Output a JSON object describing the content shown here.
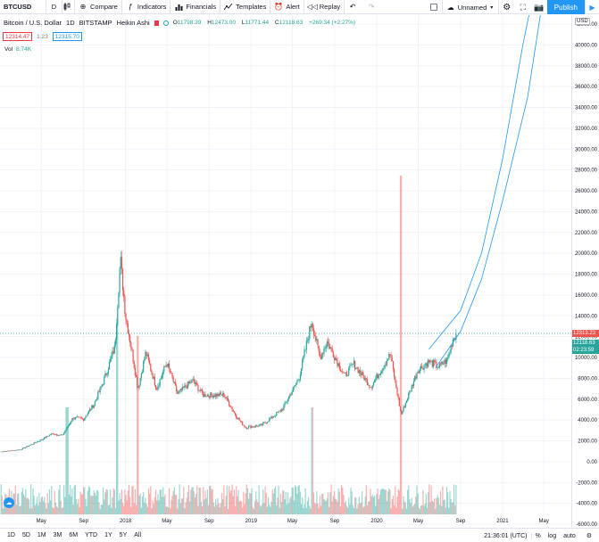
{
  "toolbar": {
    "symbol": "BTCUSD",
    "interval": "D",
    "compare": "Compare",
    "indicators": "Indicators",
    "financials": "Financials",
    "templates": "Templates",
    "alert": "Alert",
    "replay": "Replay",
    "layout_name": "Unnamed",
    "publish": "Publish"
  },
  "legend": {
    "name": "Bitcoin / U.S. Dollar",
    "interval": "1D",
    "exchange": "BITSTAMP",
    "style": "Heikin Ashi",
    "open_label": "O",
    "open": "11798.39",
    "high_label": "H",
    "high": "12473.00",
    "low_label": "L",
    "low": "11771.44",
    "close_label": "C",
    "close": "12118.63",
    "change": "+269.34 (+2.27%)",
    "bid": "12314.47",
    "spread": "1.23",
    "ask": "12315.70",
    "volume_label": "Vol",
    "volume": "8.74K"
  },
  "chart_data": {
    "type": "candlestick",
    "currency": "USD",
    "price_ticks": [
      "42000.00",
      "40000.00",
      "38000.00",
      "36000.00",
      "34000.00",
      "32000.00",
      "30000.00",
      "28000.00",
      "26000.00",
      "24000.00",
      "22000.00",
      "20000.00",
      "18000.00",
      "16000.00",
      "14000.00",
      "12000.00",
      "10000.00",
      "8000.00",
      "6000.00",
      "4000.00",
      "2000.00",
      "0.00",
      "-2000.00",
      "-4000.00",
      "-6000.00"
    ],
    "price_tick_values": [
      42000,
      40000,
      38000,
      36000,
      34000,
      32000,
      30000,
      28000,
      26000,
      24000,
      22000,
      20000,
      18000,
      16000,
      14000,
      12000,
      10000,
      8000,
      6000,
      4000,
      2000,
      0,
      -2000,
      -4000,
      -6000
    ],
    "time_ticks": [
      "May",
      "Sep",
      "2018",
      "May",
      "Sep",
      "2019",
      "May",
      "Sep",
      "2020",
      "May",
      "Sep",
      "2021",
      "May"
    ],
    "time_tick_dates": [
      "2017-05",
      "2017-09",
      "2018-01",
      "2018-05",
      "2018-09",
      "2019-01",
      "2019-05",
      "2019-09",
      "2020-01",
      "2020-05",
      "2020-09",
      "2021-01",
      "2021-05"
    ],
    "last_price": "12313.23",
    "last_close": "12118.63",
    "countdown": "02:23:59",
    "up_color": "#26a69a",
    "down_color": "#ef5350",
    "price_path": [
      [
        "2017-01",
        950
      ],
      [
        "2017-03",
        1150
      ],
      [
        "2017-05",
        2100
      ],
      [
        "2017-06",
        2700
      ],
      [
        "2017-07",
        2500
      ],
      [
        "2017-08",
        4200
      ],
      [
        "2017-09",
        4100
      ],
      [
        "2017-10",
        5500
      ],
      [
        "2017-11",
        8000
      ],
      [
        "2017-12-01",
        11000
      ],
      [
        "2017-12-17",
        19500
      ],
      [
        "2018-01-01",
        14000
      ],
      [
        "2018-01-15",
        11500
      ],
      [
        "2018-02-06",
        7000
      ],
      [
        "2018-03-01",
        10500
      ],
      [
        "2018-04-01",
        7000
      ],
      [
        "2018-05-01",
        9500
      ],
      [
        "2018-06-01",
        6500
      ],
      [
        "2018-07-15",
        7800
      ],
      [
        "2018-08-15",
        6400
      ],
      [
        "2018-10-15",
        6400
      ],
      [
        "2018-11-20",
        4300
      ],
      [
        "2018-12-15",
        3300
      ],
      [
        "2019-02-01",
        3500
      ],
      [
        "2019-04-01",
        5000
      ],
      [
        "2019-05-20",
        8000
      ],
      [
        "2019-06-26",
        13500
      ],
      [
        "2019-07-20",
        10000
      ],
      [
        "2019-08-10",
        11500
      ],
      [
        "2019-09-30",
        8200
      ],
      [
        "2019-10-26",
        9400
      ],
      [
        "2019-12-15",
        7200
      ],
      [
        "2020-02-10",
        10300
      ],
      [
        "2020-03-12",
        4500
      ],
      [
        "2020-04-30",
        8800
      ],
      [
        "2020-06-01",
        9600
      ],
      [
        "2020-07-01",
        9100
      ],
      [
        "2020-07-25",
        9800
      ],
      [
        "2020-08-10",
        11800
      ],
      [
        "2020-08-20",
        12300
      ]
    ],
    "channel_upper": [
      [
        "2020-06-01",
        10800
      ],
      [
        "2020-09-01",
        14500
      ],
      [
        "2020-11-01",
        20000
      ],
      [
        "2021-01-01",
        29000
      ],
      [
        "2021-03-01",
        40000
      ],
      [
        "2021-04-01",
        45000
      ]
    ],
    "channel_lower": [
      [
        "2020-06-20",
        9000
      ],
      [
        "2020-09-01",
        12500
      ],
      [
        "2020-11-01",
        17500
      ],
      [
        "2021-01-01",
        25000
      ],
      [
        "2021-03-15",
        35000
      ],
      [
        "2021-05-01",
        45000
      ]
    ],
    "volume_spikes": [
      [
        "2017-07-15",
        0.3
      ],
      [
        "2017-12-07",
        0.55
      ],
      [
        "2018-02-06",
        0.5
      ],
      [
        "2020-03-12",
        0.95
      ],
      [
        "2019-06-27",
        0.3
      ]
    ]
  },
  "bottom": {
    "ranges": [
      "1D",
      "5D",
      "1M",
      "3M",
      "6M",
      "YTD",
      "1Y",
      "5Y",
      "All"
    ],
    "clock": "21:36:01 (UTC)",
    "percent": "%",
    "log": "log",
    "auto": "auto"
  }
}
